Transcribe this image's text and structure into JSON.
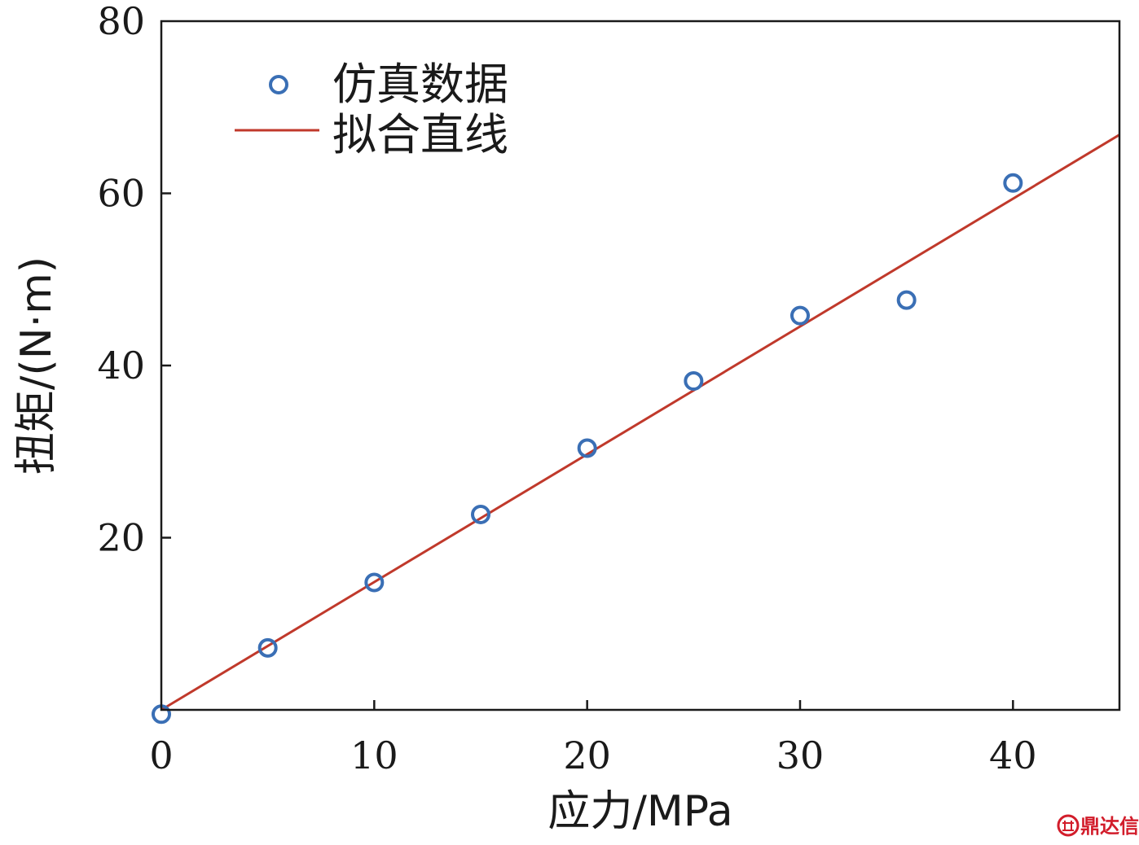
{
  "chart_data": {
    "type": "scatter",
    "xlabel": "应力/MPa",
    "ylabel": "扭矩/(N·m)",
    "xlim": [
      0,
      45
    ],
    "ylim": [
      0,
      80
    ],
    "xticks": [
      "0",
      "10",
      "20",
      "30",
      "40"
    ],
    "yticks": [
      "20",
      "40",
      "60",
      "80"
    ],
    "grid": false,
    "legend_position": "top-left",
    "series": [
      {
        "name": "仿真数据",
        "kind": "scatter",
        "marker": "open-circle",
        "color": "#3a6fb5",
        "x": [
          0,
          5,
          10,
          15,
          20,
          25,
          30,
          35,
          40
        ],
        "y": [
          -0.5,
          7.2,
          14.8,
          22.7,
          30.4,
          38.2,
          45.8,
          47.6,
          61.2
        ]
      },
      {
        "name": "拟合直线",
        "kind": "line",
        "color": "#c0392b",
        "x": [
          0,
          45
        ],
        "y": [
          0,
          66.8
        ]
      }
    ]
  },
  "watermark": {
    "text": "鼎达信",
    "logo_icon": "dingdaxin-logo-icon",
    "color": "#d21d2b"
  }
}
